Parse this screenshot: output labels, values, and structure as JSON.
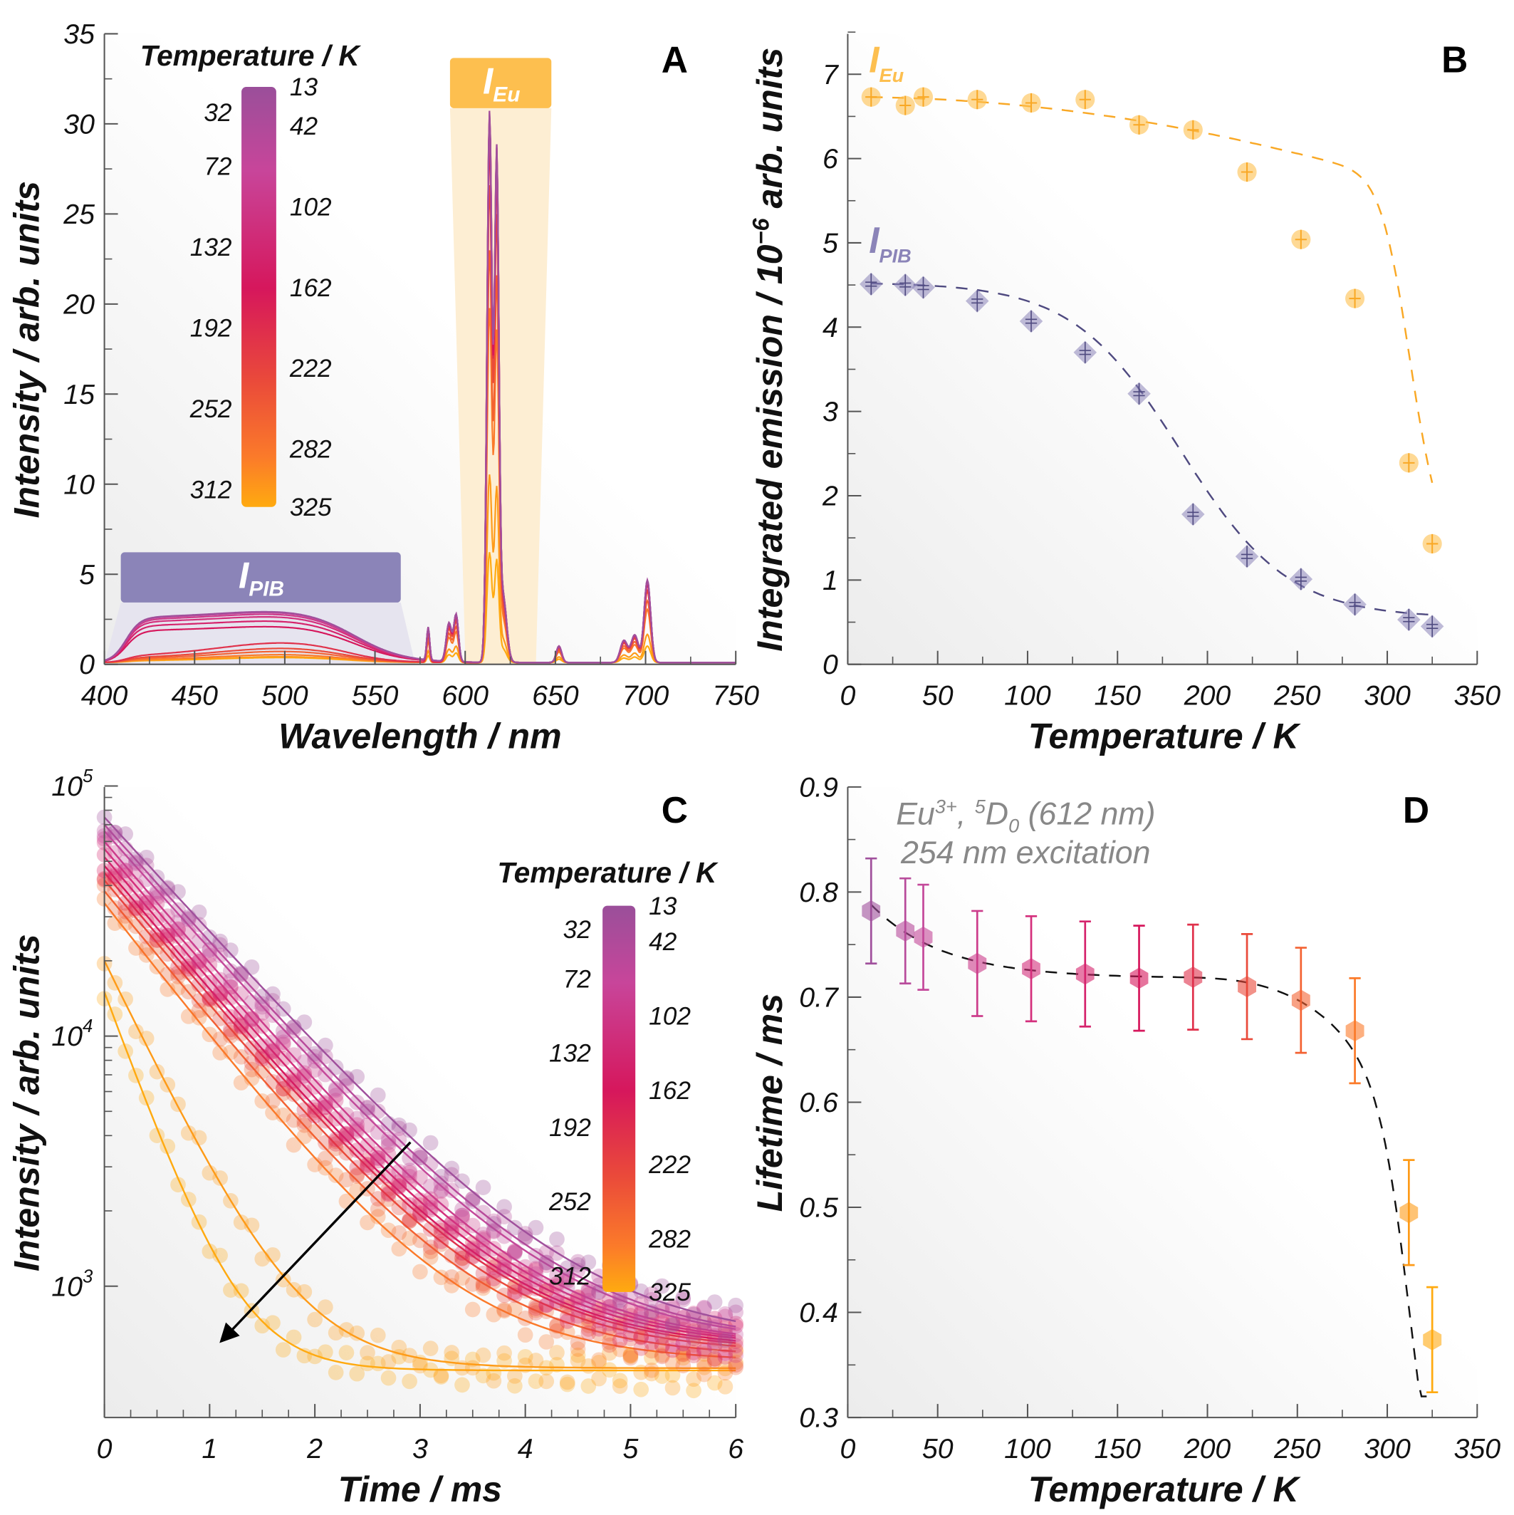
{
  "colors": {
    "13": "#a0509c",
    "42": "#c4489a",
    "102": "#d42f7c",
    "162": "#d6175c",
    "222": "#ea4a3a",
    "282": "#fb7a2a",
    "325": "#ffaa10",
    "eu": "#f9a825",
    "eu_box": "#fdbf4f",
    "pib": "#6b6599",
    "pib_box": "#8b84b8",
    "fit": "#111111"
  },
  "temperatures": [
    13,
    32,
    42,
    72,
    102,
    132,
    162,
    192,
    222,
    252,
    282,
    312,
    325
  ],
  "chart_data": [
    {
      "panel": "A",
      "type": "line",
      "xlabel": "Wavelength / nm",
      "ylabel": "Intensity / arb. units",
      "xlim": [
        400,
        750
      ],
      "ylim": [
        0,
        35
      ],
      "xticks": [
        400,
        450,
        500,
        550,
        600,
        650,
        700,
        750
      ],
      "yticks": [
        0,
        5,
        10,
        15,
        20,
        25,
        30,
        35
      ],
      "legend": {
        "title": "Temperature / K",
        "left_labels": [
          "32",
          "72",
          "132",
          "192",
          "252",
          "312"
        ],
        "right_labels": [
          "13",
          "42",
          "102",
          "162",
          "222",
          "282",
          "325"
        ]
      },
      "regions": [
        {
          "label": "I",
          "sub": "Eu",
          "from_nm": 600,
          "to_nm": 640
        },
        {
          "label": "I",
          "sub": "PIB",
          "from_nm": 405,
          "to_nm": 575
        }
      ],
      "eu_peak_height_612nm": [
        30.5,
        30.0,
        30.5,
        30.3,
        30.1,
        30.3,
        29.0,
        28.7,
        26.4,
        22.8,
        19.6,
        10.4,
        6.1
      ],
      "pib_band_height": [
        2.95,
        2.93,
        2.9,
        2.8,
        2.65,
        2.4,
        2.08,
        1.15,
        0.83,
        0.65,
        0.46,
        0.34,
        0.29
      ]
    },
    {
      "panel": "B",
      "type": "scatter",
      "xlabel": "Temperature / K",
      "ylabel": "Integrated emission / 10",
      "ylabel_sup": "−6",
      "ylabel_end": " arb. units",
      "xlim": [
        0,
        350
      ],
      "ylim": [
        0,
        7.5
      ],
      "xticks": [
        0,
        50,
        100,
        150,
        200,
        250,
        300,
        350
      ],
      "yticks": [
        0,
        1,
        2,
        3,
        4,
        5,
        6,
        7
      ],
      "x": [
        13,
        32,
        42,
        72,
        102,
        132,
        162,
        192,
        222,
        252,
        282,
        312,
        325
      ],
      "series": [
        {
          "name": "I",
          "sub": "Eu",
          "values": [
            6.73,
            6.63,
            6.73,
            6.7,
            6.66,
            6.7,
            6.4,
            6.34,
            5.84,
            5.04,
            4.34,
            2.39,
            1.43
          ]
        },
        {
          "name": "I",
          "sub": "PIB",
          "values": [
            4.51,
            4.5,
            4.47,
            4.31,
            4.07,
            3.7,
            3.21,
            1.78,
            1.28,
            1.01,
            0.71,
            0.53,
            0.45
          ]
        }
      ]
    },
    {
      "panel": "C",
      "type": "scatter",
      "yscale": "log",
      "xlabel": "Time / ms",
      "ylabel": "Intensity / arb. units",
      "xlim": [
        0,
        6
      ],
      "ylim": [
        300,
        100000
      ],
      "xticks": [
        0,
        1,
        2,
        3,
        4,
        5,
        6
      ],
      "yticks": [
        {
          "base": "10",
          "exp": "5"
        },
        {
          "base": "10",
          "exp": "4"
        },
        {
          "base": "10",
          "exp": "3"
        }
      ],
      "legend": {
        "title": "Temperature / K",
        "left_labels": [
          "32",
          "72",
          "132",
          "192",
          "252",
          "312"
        ],
        "right_labels": [
          "13",
          "42",
          "102",
          "162",
          "222",
          "282",
          "325"
        ]
      },
      "initial_intensity": [
        75000,
        70000,
        66000,
        60000,
        56000,
        52000,
        48000,
        45000,
        42000,
        38000,
        34000,
        20000,
        15000
      ],
      "lifetime_ms": [
        0.782,
        0.763,
        0.757,
        0.732,
        0.727,
        0.722,
        0.718,
        0.719,
        0.71,
        0.697,
        0.668,
        0.495,
        0.374
      ],
      "background": [
        600,
        590,
        585,
        580,
        575,
        570,
        560,
        550,
        540,
        520,
        500,
        470,
        460
      ]
    },
    {
      "panel": "D",
      "type": "scatter",
      "xlabel": "Temperature / K",
      "ylabel": "Lifetime / ms",
      "xlim": [
        0,
        350
      ],
      "ylim": [
        0.3,
        0.9
      ],
      "xticks": [
        0,
        50,
        100,
        150,
        200,
        250,
        300,
        350
      ],
      "yticks": [
        0.3,
        0.4,
        0.5,
        0.6,
        0.7,
        0.8,
        0.9
      ],
      "annotation": {
        "a": "Eu",
        "a_sup": "3+",
        "b": ", ",
        "b_sup": "5",
        "c": "D",
        "c_sub": "0",
        "d": " (612 nm)",
        "line2": "254 nm excitation"
      },
      "x": [
        13,
        32,
        42,
        72,
        102,
        132,
        162,
        192,
        222,
        252,
        282,
        312,
        325
      ],
      "values": [
        0.782,
        0.763,
        0.757,
        0.732,
        0.727,
        0.722,
        0.718,
        0.719,
        0.71,
        0.697,
        0.668,
        0.495,
        0.374
      ],
      "error": 0.05
    }
  ]
}
